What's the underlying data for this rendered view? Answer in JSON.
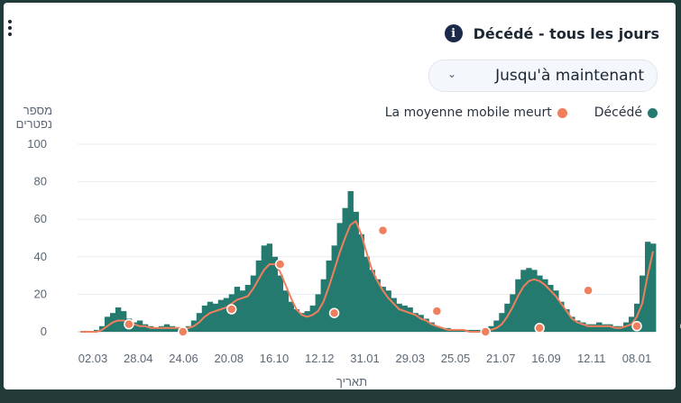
{
  "header": {
    "title": "Décédé - tous les jours",
    "info_icon": "info-icon",
    "menu_icon": "kebab-menu-icon"
  },
  "filter": {
    "selected": "Jusqu'à maintenant",
    "icon": "chevron-down-icon"
  },
  "colors": {
    "bars": "#247a6f",
    "line": "#f07f5d",
    "marker": "#f07f5d"
  },
  "chart_data": {
    "type": "bar",
    "ylabel": "מספר נפטרים",
    "xlabel": "תאריך",
    "ylim": [
      0,
      100
    ],
    "yticks": [
      0,
      20,
      40,
      60,
      80,
      100
    ],
    "grid": true,
    "legend_position": "top-right",
    "x_ticks": [
      "02.03",
      "28.04",
      "24.06",
      "20.08",
      "16.10",
      "12.12",
      "31.01",
      "29.03",
      "25.05",
      "21.07",
      "16.09",
      "12.11",
      "08.01"
    ],
    "series": [
      {
        "name": "Décédé",
        "type": "bar",
        "values": [
          0,
          0,
          0,
          1,
          3,
          8,
          10,
          13,
          11,
          7,
          5,
          6,
          4,
          3,
          2,
          3,
          4,
          3,
          2,
          2,
          3,
          6,
          10,
          14,
          16,
          15,
          17,
          18,
          20,
          24,
          22,
          25,
          30,
          38,
          46,
          47,
          40,
          30,
          22,
          16,
          12,
          10,
          11,
          14,
          20,
          28,
          38,
          46,
          58,
          66,
          75,
          64,
          52,
          40,
          33,
          28,
          24,
          22,
          18,
          15,
          14,
          13,
          10,
          9,
          7,
          5,
          3,
          2,
          2,
          1,
          1,
          1,
          1,
          1,
          1,
          2,
          3,
          6,
          10,
          15,
          20,
          28,
          33,
          34,
          33,
          30,
          28,
          25,
          22,
          16,
          12,
          8,
          6,
          5,
          4,
          4,
          5,
          4,
          4,
          3,
          3,
          5,
          8,
          15,
          30,
          48,
          47
        ]
      },
      {
        "name": "La moyenne mobile meurt",
        "type": "line",
        "values": [
          0,
          0,
          0,
          0,
          1,
          3,
          5,
          6,
          6,
          5,
          4,
          3,
          3,
          2,
          2,
          2,
          2,
          2,
          2,
          2,
          2,
          3,
          5,
          8,
          10,
          11,
          12,
          13,
          15,
          17,
          18,
          19,
          23,
          28,
          33,
          36,
          36,
          32,
          25,
          18,
          12,
          9,
          8,
          9,
          11,
          16,
          24,
          33,
          42,
          50,
          57,
          59,
          52,
          42,
          33,
          27,
          22,
          18,
          15,
          12,
          11,
          10,
          9,
          7,
          6,
          4,
          3,
          2,
          1,
          1,
          1,
          1,
          0,
          0,
          0,
          1,
          1,
          2,
          4,
          8,
          13,
          19,
          24,
          27,
          28,
          27,
          25,
          22,
          19,
          15,
          11,
          7,
          5,
          4,
          3,
          3,
          3,
          3,
          3,
          2,
          2,
          3,
          4,
          8,
          15,
          30,
          43
        ]
      }
    ],
    "markers": [
      {
        "index": 9,
        "value": 4
      },
      {
        "index": 19,
        "value": 0
      },
      {
        "index": 28,
        "value": 12
      },
      {
        "index": 37,
        "value": 36
      },
      {
        "index": 47,
        "value": 10
      },
      {
        "index": 56,
        "value": 54
      },
      {
        "index": 66,
        "value": 11
      },
      {
        "index": 75,
        "value": 0
      },
      {
        "index": 85,
        "value": 2
      },
      {
        "index": 94,
        "value": 22
      },
      {
        "index": 103,
        "value": 3
      },
      {
        "index": 112,
        "value": 3
      }
    ]
  }
}
